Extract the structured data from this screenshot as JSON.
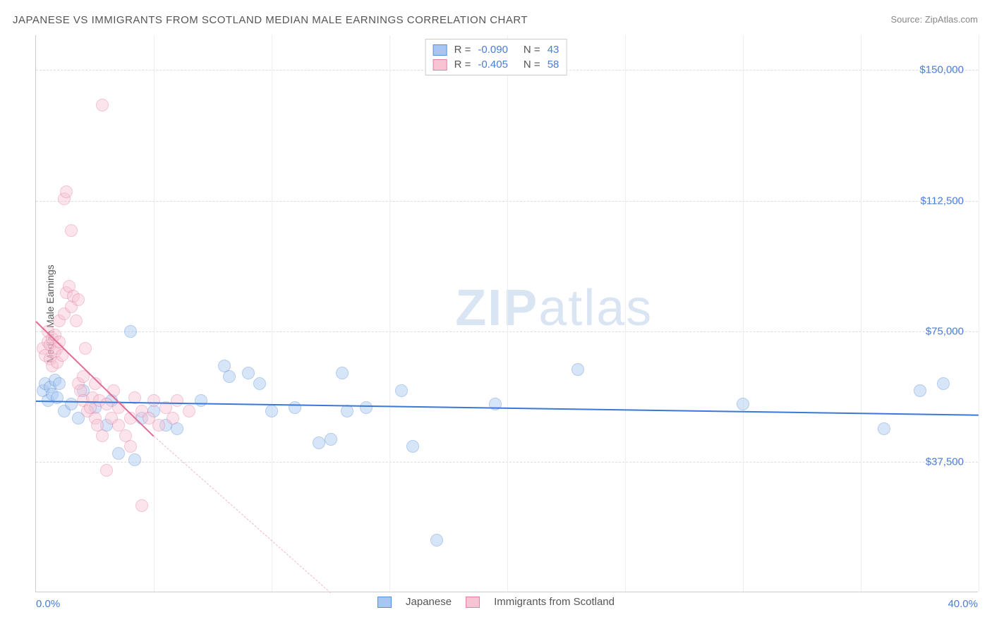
{
  "title": "JAPANESE VS IMMIGRANTS FROM SCOTLAND MEDIAN MALE EARNINGS CORRELATION CHART",
  "source": "Source: ZipAtlas.com",
  "ylabel": "Median Male Earnings",
  "watermark_a": "ZIP",
  "watermark_b": "atlas",
  "chart": {
    "type": "scatter",
    "xlim": [
      0,
      40
    ],
    "ylim": [
      0,
      160000
    ],
    "xticks": [
      {
        "v": 0,
        "label": "0.0%"
      },
      {
        "v": 40,
        "label": "40.0%"
      }
    ],
    "yticks": [
      {
        "v": 37500,
        "label": "$37,500"
      },
      {
        "v": 75000,
        "label": "$75,000"
      },
      {
        "v": 112500,
        "label": "$112,500"
      },
      {
        "v": 150000,
        "label": "$150,000"
      }
    ],
    "vgrids": [
      5,
      10,
      15,
      20,
      25,
      30,
      35,
      40
    ],
    "background_color": "#ffffff",
    "grid_color": "#dddddd",
    "marker_radius": 9,
    "marker_opacity": 0.45,
    "series": [
      {
        "name": "Japanese",
        "fill": "#a7c7f2",
        "stroke": "#5a8fd6",
        "r_label": "R = ",
        "r_value": "-0.090",
        "n_label": "N = ",
        "n_value": "43",
        "trend": {
          "x1": 0,
          "y1": 55000,
          "x2": 40,
          "y2": 51000,
          "color": "#3b78d8",
          "width": 2,
          "dash": false
        },
        "points": [
          [
            0.3,
            58000
          ],
          [
            0.4,
            60000
          ],
          [
            0.5,
            55000
          ],
          [
            0.6,
            59000
          ],
          [
            0.7,
            57000
          ],
          [
            0.8,
            61000
          ],
          [
            0.9,
            56000
          ],
          [
            1.0,
            60000
          ],
          [
            1.2,
            52000
          ],
          [
            1.5,
            54000
          ],
          [
            1.8,
            50000
          ],
          [
            2.0,
            58000
          ],
          [
            2.5,
            53000
          ],
          [
            3.0,
            48000
          ],
          [
            3.2,
            55000
          ],
          [
            3.5,
            40000
          ],
          [
            4.0,
            75000
          ],
          [
            4.2,
            38000
          ],
          [
            4.5,
            50000
          ],
          [
            5.0,
            52000
          ],
          [
            5.5,
            48000
          ],
          [
            6.0,
            47000
          ],
          [
            7.0,
            55000
          ],
          [
            8.0,
            65000
          ],
          [
            8.2,
            62000
          ],
          [
            9.0,
            63000
          ],
          [
            9.5,
            60000
          ],
          [
            10.0,
            52000
          ],
          [
            11.0,
            53000
          ],
          [
            12.0,
            43000
          ],
          [
            12.5,
            44000
          ],
          [
            13.0,
            63000
          ],
          [
            13.2,
            52000
          ],
          [
            14.0,
            53000
          ],
          [
            15.5,
            58000
          ],
          [
            16.0,
            42000
          ],
          [
            17.0,
            15000
          ],
          [
            19.5,
            54000
          ],
          [
            23.0,
            64000
          ],
          [
            30.0,
            54000
          ],
          [
            36.0,
            47000
          ],
          [
            37.5,
            58000
          ],
          [
            38.5,
            60000
          ]
        ]
      },
      {
        "name": "Immigrants from Scotland",
        "fill": "#f7c4d4",
        "stroke": "#e67fa3",
        "r_label": "R = ",
        "r_value": "-0.405",
        "n_label": "N = ",
        "n_value": "58",
        "trend_solid": {
          "x1": 0,
          "y1": 78000,
          "x2": 5,
          "y2": 45000,
          "color": "#e16b94",
          "width": 2
        },
        "trend_dash": {
          "x1": 5,
          "y1": 45000,
          "x2": 12.5,
          "y2": 0,
          "color": "#f3b6c9",
          "width": 1
        },
        "points": [
          [
            0.3,
            70000
          ],
          [
            0.4,
            68000
          ],
          [
            0.5,
            72000
          ],
          [
            0.5,
            75000
          ],
          [
            0.6,
            67000
          ],
          [
            0.6,
            71000
          ],
          [
            0.7,
            73000
          ],
          [
            0.7,
            65000
          ],
          [
            0.8,
            69000
          ],
          [
            0.8,
            74000
          ],
          [
            0.9,
            70000
          ],
          [
            0.9,
            66000
          ],
          [
            1.0,
            78000
          ],
          [
            1.0,
            72000
          ],
          [
            1.1,
            68000
          ],
          [
            1.2,
            80000
          ],
          [
            1.2,
            113000
          ],
          [
            1.3,
            86000
          ],
          [
            1.3,
            115000
          ],
          [
            1.4,
            88000
          ],
          [
            1.5,
            82000
          ],
          [
            1.5,
            104000
          ],
          [
            1.6,
            85000
          ],
          [
            1.7,
            78000
          ],
          [
            1.8,
            60000
          ],
          [
            1.8,
            84000
          ],
          [
            1.9,
            58000
          ],
          [
            2.0,
            55000
          ],
          [
            2.0,
            62000
          ],
          [
            2.1,
            70000
          ],
          [
            2.2,
            52000
          ],
          [
            2.3,
            53000
          ],
          [
            2.4,
            56000
          ],
          [
            2.5,
            50000
          ],
          [
            2.5,
            60000
          ],
          [
            2.6,
            48000
          ],
          [
            2.7,
            55000
          ],
          [
            2.8,
            45000
          ],
          [
            2.8,
            140000
          ],
          [
            3.0,
            54000
          ],
          [
            3.0,
            35000
          ],
          [
            3.2,
            50000
          ],
          [
            3.3,
            58000
          ],
          [
            3.5,
            48000
          ],
          [
            3.5,
            53000
          ],
          [
            3.8,
            45000
          ],
          [
            4.0,
            50000
          ],
          [
            4.0,
            42000
          ],
          [
            4.2,
            56000
          ],
          [
            4.5,
            52000
          ],
          [
            4.5,
            25000
          ],
          [
            4.8,
            50000
          ],
          [
            5.0,
            55000
          ],
          [
            5.2,
            48000
          ],
          [
            5.5,
            53000
          ],
          [
            5.8,
            50000
          ],
          [
            6.0,
            55000
          ],
          [
            6.5,
            52000
          ]
        ]
      }
    ],
    "legend_bottom": [
      {
        "label": "Japanese",
        "fill": "#a7c7f2",
        "stroke": "#5a8fd6"
      },
      {
        "label": "Immigrants from Scotland",
        "fill": "#f7c4d4",
        "stroke": "#e67fa3"
      }
    ]
  }
}
